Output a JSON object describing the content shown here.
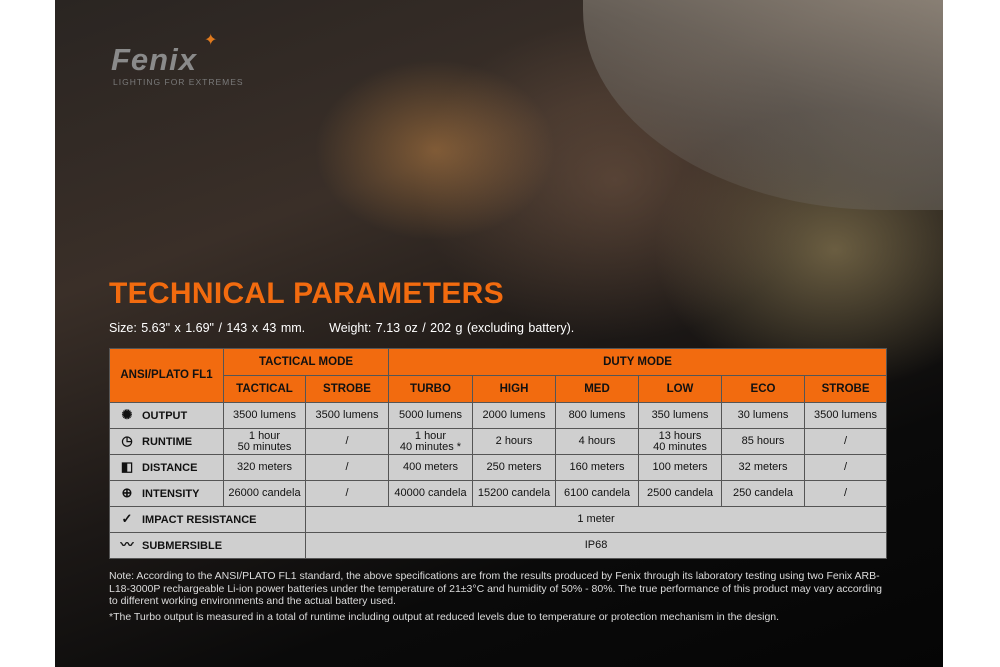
{
  "brand": {
    "logo": "Fenix",
    "tagline": "LIGHTING FOR EXTREMES"
  },
  "title": "TECHNICAL PARAMETERS",
  "size": "Size: 5.63\" x 1.69\" / 143 x 43 mm.",
  "weight": "Weight: 7.13 oz / 202 g (excluding battery).",
  "table": {
    "corner": "ANSI/PLATO FL1",
    "groups": [
      "TACTICAL MODE",
      "DUTY MODE"
    ],
    "modes": [
      "TACTICAL",
      "STROBE",
      "TURBO",
      "HIGH",
      "MED",
      "LOW",
      "ECO",
      "STROBE"
    ],
    "rows": [
      {
        "icon": "output-icon",
        "label": "OUTPUT",
        "cells": [
          "3500 lumens",
          "3500 lumens",
          "5000 lumens",
          "2000 lumens",
          "800 lumens",
          "350 lumens",
          "30 lumens",
          "3500 lumens"
        ]
      },
      {
        "icon": "clock-icon",
        "label": "RUNTIME",
        "cells": [
          "1 hour\n50 minutes",
          "/",
          "1 hour\n40 minutes *",
          "2 hours",
          "4 hours",
          "13 hours\n40 minutes",
          "85 hours",
          "/"
        ]
      },
      {
        "icon": "beam-distance-icon",
        "label": "DISTANCE",
        "cells": [
          "320 meters",
          "/",
          "400 meters",
          "250 meters",
          "160 meters",
          "100 meters",
          "32 meters",
          "/"
        ]
      },
      {
        "icon": "crosshair-icon",
        "label": "INTENSITY",
        "cells": [
          "26000 candela",
          "/",
          "40000 candela",
          "15200 candela",
          "6100 candela",
          "2500 candela",
          "250 candela",
          "/"
        ]
      }
    ],
    "impact": {
      "icon": "impact-icon",
      "label": "IMPACT RESISTANCE",
      "value": "1 meter"
    },
    "submersible": {
      "icon": "submersible-icon",
      "label": "SUBMERSIBLE",
      "value": "IP68"
    }
  },
  "notes": [
    "Note: According to the ANSI/PLATO FL1 standard, the above specifications are from the results produced by Fenix through its laboratory testing using two Fenix ARB-L18-3000P rechargeable Li-ion power batteries under the temperature of 21±3°C and humidity of 50% - 80%. The true performance of this product may vary according to different working environments and the actual battery used.",
    "*The Turbo output is measured in a total of runtime including output at reduced levels due to temperature or protection mechanism in the design."
  ]
}
